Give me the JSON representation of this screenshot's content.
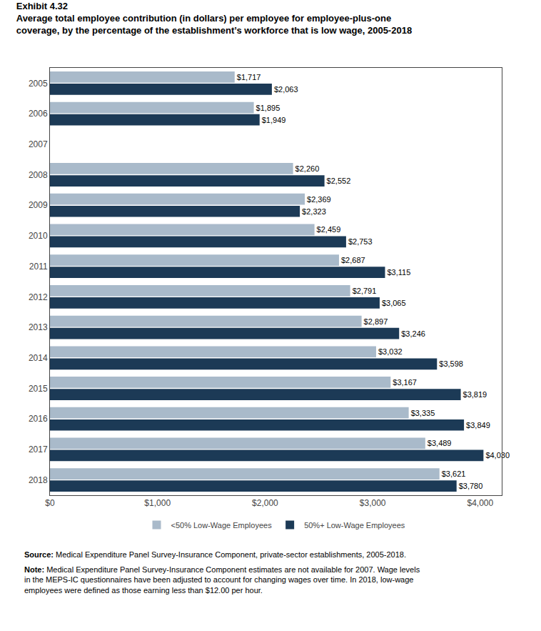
{
  "chart_data": {
    "type": "bar",
    "orientation": "horizontal",
    "title": "Exhibit 4.32",
    "subtitle": [
      "Average total employee contribution (in dollars) per employee for employee-plus-one",
      "coverage, by the percentage of the establishment’s workforce that is low wage, 2005-2018"
    ],
    "categories": [
      "2005",
      "2006",
      "2007",
      "2008",
      "2009",
      "2010",
      "2011",
      "2012",
      "2013",
      "2014",
      "2015",
      "2016",
      "2017",
      "2018"
    ],
    "series": [
      {
        "name": "<50% Low-Wage Employees",
        "color": "#a9baca",
        "values": [
          1717,
          1895,
          null,
          2260,
          2369,
          2459,
          2687,
          2791,
          2897,
          3032,
          3167,
          3335,
          3489,
          3621
        ],
        "value_labels": [
          "$1,717",
          "$1,895",
          null,
          "$2,260",
          "$2,369",
          "$2,459",
          "$2,687",
          "$2,791",
          "$2,897",
          "$3,032",
          "$3,167",
          "$3,335",
          "$3,489",
          "$3,621"
        ]
      },
      {
        "name": "50%+ Low-Wage Employees",
        "color": "#1c3a56",
        "values": [
          2063,
          1949,
          null,
          2552,
          2323,
          2753,
          3115,
          3065,
          3246,
          3598,
          3819,
          3849,
          4030,
          3780
        ],
        "value_labels": [
          "$2,063",
          "$1,949",
          null,
          "$2,552",
          "$2,323",
          "$2,753",
          "$3,115",
          "$3,065",
          "$3,246",
          "$3,598",
          "$3,819",
          "$3,849",
          "$4,030",
          "$3,780"
        ]
      }
    ],
    "xlim": [
      0,
      4200
    ],
    "xticks": [
      {
        "value": 0,
        "label": "$0"
      },
      {
        "value": 1000,
        "label": "$1,000"
      },
      {
        "value": 2000,
        "label": "$2,000"
      },
      {
        "value": 3000,
        "label": "$3,000"
      },
      {
        "value": 4000,
        "label": "$4,000"
      }
    ],
    "data_labels": true,
    "grid": false,
    "legend": "bottom",
    "annotations": [
      "Source: Medical Expenditure Panel Survey-Insurance Component, private-sector establishments, 2005-2018.",
      "Note: Medical Expenditure Panel Survey-Insurance Component estimates are not available for 2007. Wage levels in the MEPS-IC questionnaires have been adjusted to account for changing wages over time. In 2018, low-wage employees were defined as those earning less than $12.00 per hour."
    ]
  }
}
